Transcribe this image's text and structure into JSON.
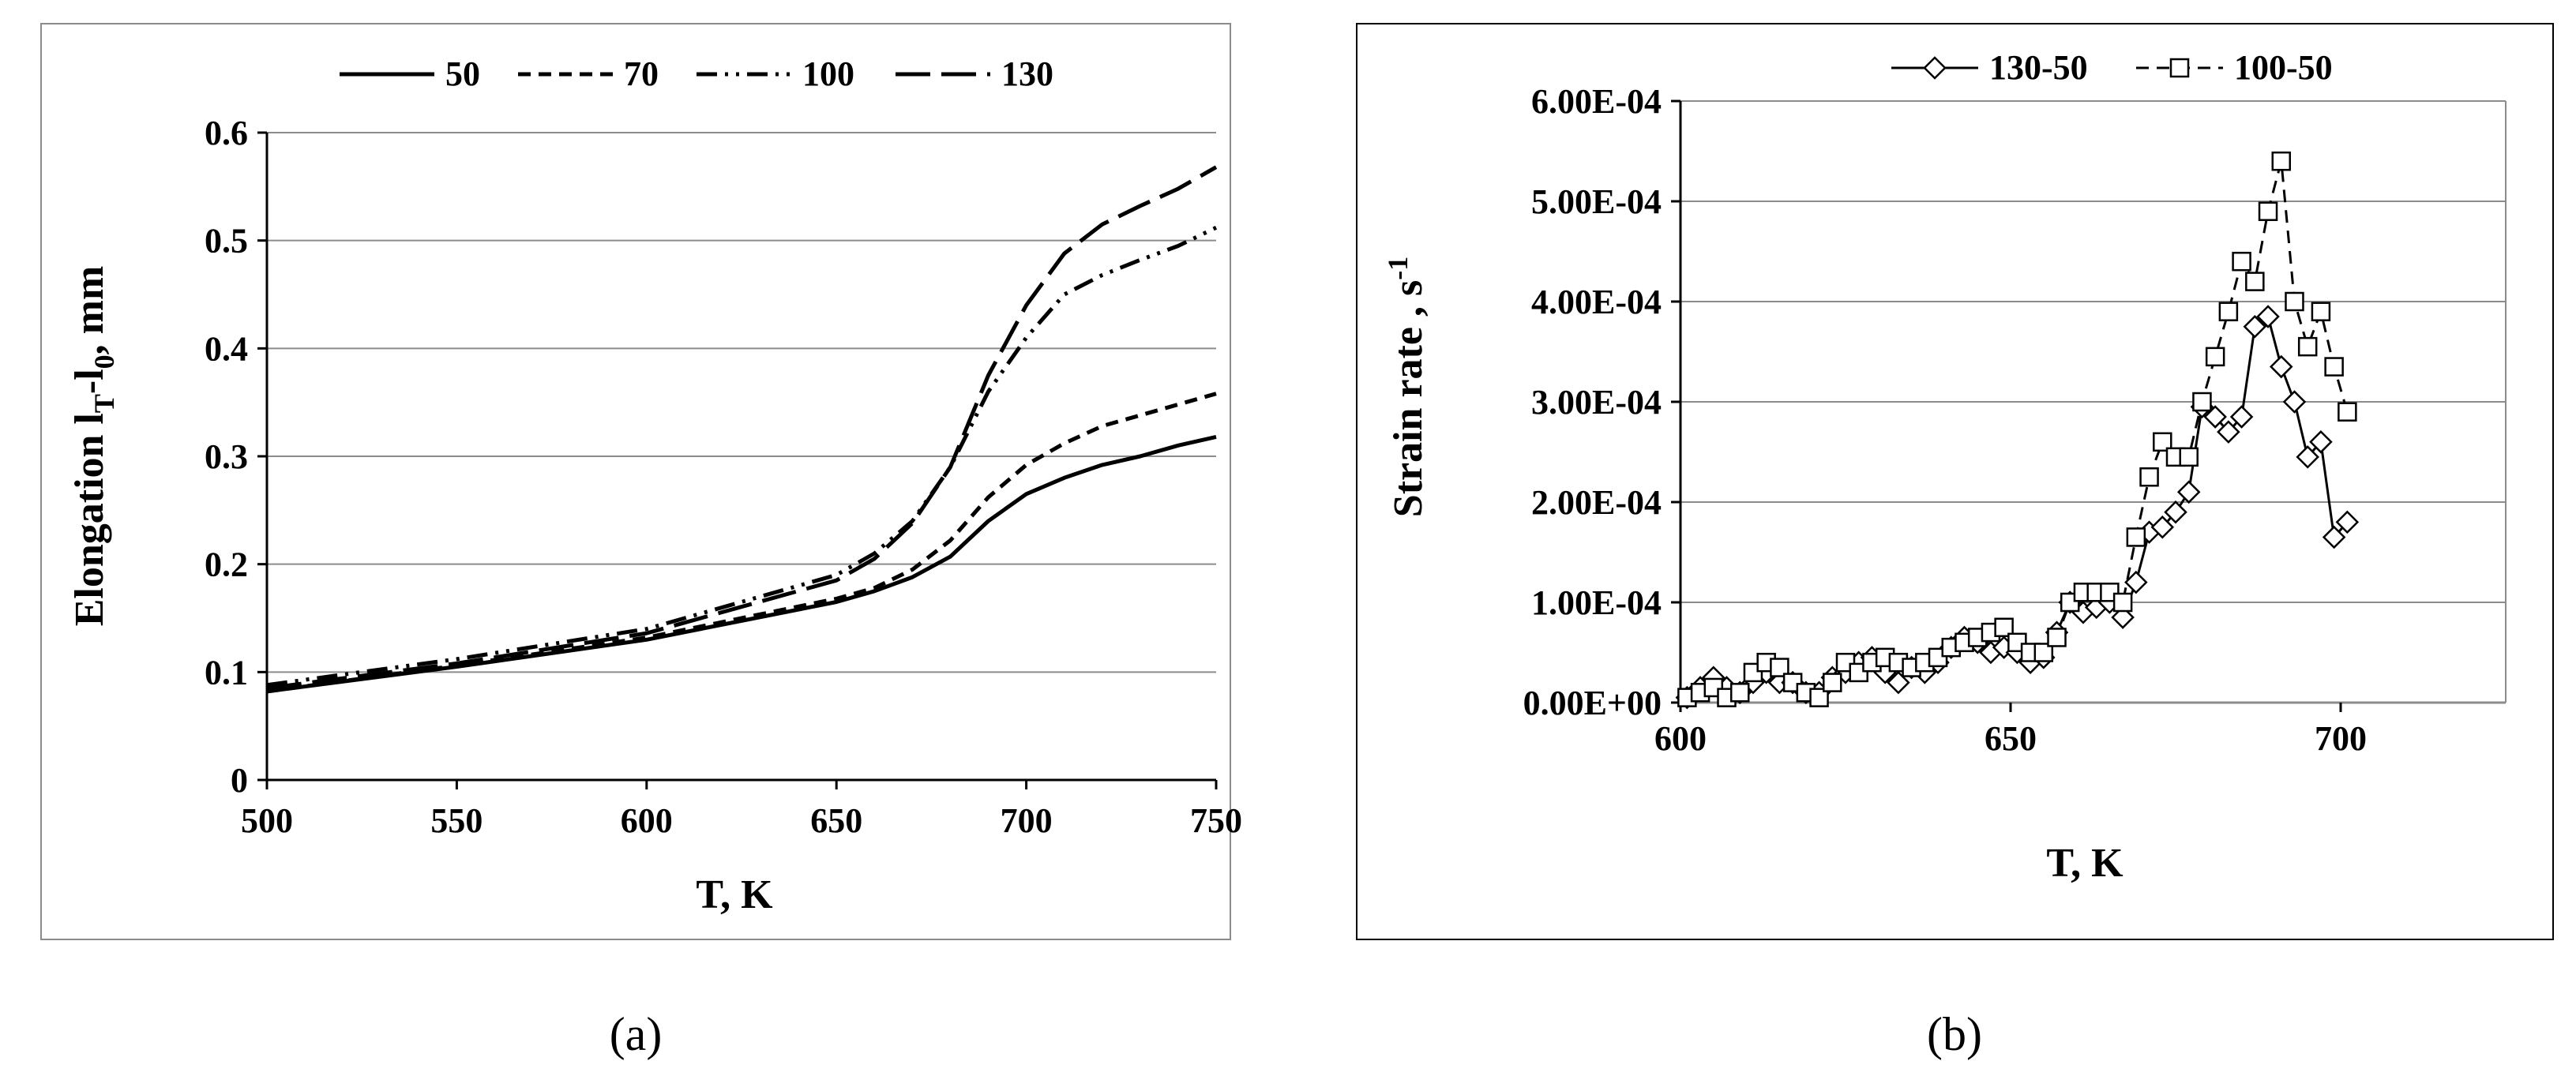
{
  "figure": {
    "captions": [
      "(a)",
      "(b)"
    ]
  },
  "chart_data": [
    {
      "panel": "a",
      "type": "line",
      "title": "",
      "xlabel": "T, K",
      "ylabel_main": "Elongation l",
      "ylabel_sub1": "T",
      "ylabel_mid": "-l",
      "ylabel_sub2": "0",
      "ylabel_tail": ", mm",
      "xlim": [
        500,
        750
      ],
      "ylim": [
        0,
        0.6
      ],
      "xticks": [
        500,
        550,
        600,
        650,
        700,
        750
      ],
      "xtick_labels": [
        "500",
        "550",
        "600",
        "650",
        "700",
        "750"
      ],
      "yticks": [
        0,
        0.1,
        0.2,
        0.3,
        0.4,
        0.5,
        0.6
      ],
      "ytick_labels": [
        "0",
        "0.1",
        "0.2",
        "0.3",
        "0.4",
        "0.5",
        "0.6"
      ],
      "grid": "horizontal",
      "legend_position": "top",
      "series": [
        {
          "name": "50",
          "dash": "solid",
          "x": [
            500,
            550,
            600,
            650,
            660,
            670,
            680,
            690,
            700,
            710,
            720,
            730,
            740,
            750
          ],
          "y": [
            0.082,
            0.105,
            0.13,
            0.165,
            0.175,
            0.188,
            0.207,
            0.24,
            0.265,
            0.28,
            0.292,
            0.3,
            0.31,
            0.318
          ]
        },
        {
          "name": "70",
          "dash": "dashed",
          "x": [
            500,
            550,
            600,
            650,
            660,
            670,
            680,
            690,
            700,
            710,
            720,
            730,
            740,
            750
          ],
          "y": [
            0.082,
            0.106,
            0.132,
            0.168,
            0.178,
            0.195,
            0.222,
            0.262,
            0.292,
            0.312,
            0.328,
            0.338,
            0.348,
            0.358
          ]
        },
        {
          "name": "100",
          "dash": "dashdotdot",
          "x": [
            500,
            550,
            600,
            650,
            660,
            670,
            680,
            690,
            700,
            710,
            720,
            730,
            740,
            750
          ],
          "y": [
            0.088,
            0.112,
            0.14,
            0.19,
            0.21,
            0.24,
            0.29,
            0.36,
            0.41,
            0.45,
            0.468,
            0.482,
            0.495,
            0.512
          ]
        },
        {
          "name": "130",
          "dash": "longdash",
          "x": [
            500,
            550,
            600,
            650,
            660,
            670,
            680,
            690,
            700,
            710,
            720,
            730,
            740,
            750
          ],
          "y": [
            0.085,
            0.108,
            0.136,
            0.185,
            0.205,
            0.238,
            0.29,
            0.375,
            0.44,
            0.488,
            0.515,
            0.532,
            0.548,
            0.568
          ]
        }
      ]
    },
    {
      "panel": "b",
      "type": "line",
      "title": "",
      "xlabel": "T, K",
      "ylabel_main": "Strain rate , s",
      "ylabel_sup": "-1",
      "xlim": [
        600,
        725
      ],
      "ylim": [
        0,
        0.0006
      ],
      "xticks": [
        600,
        650,
        700
      ],
      "xtick_labels": [
        "600",
        "650",
        "700"
      ],
      "yticks": [
        0,
        0.0001,
        0.0002,
        0.0003,
        0.0004,
        0.0005,
        0.0006
      ],
      "ytick_labels": [
        "0.00E+00",
        "1.00E-04",
        "2.00E-04",
        "3.00E-04",
        "4.00E-04",
        "5.00E-04",
        "6.00E-04"
      ],
      "grid": "horizontal",
      "legend_position": "top",
      "series": [
        {
          "name": "130-50",
          "marker": "diamond",
          "dash": "solid",
          "x": [
            601,
            603,
            605,
            607,
            609,
            611,
            613,
            615,
            617,
            619,
            621,
            623,
            625,
            627,
            629,
            631,
            633,
            635,
            637,
            639,
            641,
            643,
            645,
            647,
            649,
            651,
            653,
            655,
            657,
            659,
            661,
            663,
            665,
            667,
            669,
            671,
            673,
            675,
            677,
            679,
            681,
            683,
            685,
            687,
            689,
            691,
            693,
            695,
            697,
            699,
            701
          ],
          "y": [
            5e-06,
            1.5e-05,
            2.5e-05,
            1.5e-05,
            1e-05,
            2e-05,
            3e-05,
            2e-05,
            2e-05,
            1e-05,
            1e-05,
            2.5e-05,
            3e-05,
            4e-05,
            4.5e-05,
            3e-05,
            2e-05,
            3.5e-05,
            3e-05,
            4e-05,
            5.5e-05,
            6.5e-05,
            6e-05,
            5e-05,
            5.5e-05,
            5e-05,
            4e-05,
            4.5e-05,
            7e-05,
            0.0001,
            9e-05,
            9.5e-05,
            0.0001,
            8.5e-05,
            0.00012,
            0.00017,
            0.000175,
            0.00019,
            0.00021,
            0.000295,
            0.000285,
            0.00027,
            0.000285,
            0.000375,
            0.000385,
            0.000335,
            0.0003,
            0.000245,
            0.00026,
            0.000165,
            0.00018
          ]
        },
        {
          "name": "100-50",
          "marker": "square",
          "dash": "dashed",
          "x": [
            601,
            603,
            605,
            607,
            609,
            611,
            613,
            615,
            617,
            619,
            621,
            623,
            625,
            627,
            629,
            631,
            633,
            635,
            637,
            639,
            641,
            643,
            645,
            647,
            649,
            651,
            653,
            655,
            657,
            659,
            661,
            663,
            665,
            667,
            669,
            671,
            673,
            675,
            677,
            679,
            681,
            683,
            685,
            687,
            689,
            691,
            693,
            695,
            697,
            699,
            701
          ],
          "y": [
            5e-06,
            1e-05,
            1.5e-05,
            5e-06,
            1e-05,
            3e-05,
            4e-05,
            3.5e-05,
            2e-05,
            1e-05,
            5e-06,
            2e-05,
            4e-05,
            3e-05,
            4e-05,
            4.5e-05,
            4e-05,
            3.5e-05,
            4e-05,
            4.5e-05,
            5.5e-05,
            6e-05,
            6.5e-05,
            7e-05,
            7.5e-05,
            6e-05,
            5e-05,
            5e-05,
            6.5e-05,
            0.0001,
            0.00011,
            0.00011,
            0.00011,
            0.0001,
            0.000165,
            0.000225,
            0.00026,
            0.000245,
            0.000245,
            0.0003,
            0.000345,
            0.00039,
            0.00044,
            0.00042,
            0.00049,
            0.00054,
            0.0004,
            0.000355,
            0.00039,
            0.000335,
            0.00029
          ]
        }
      ]
    }
  ]
}
